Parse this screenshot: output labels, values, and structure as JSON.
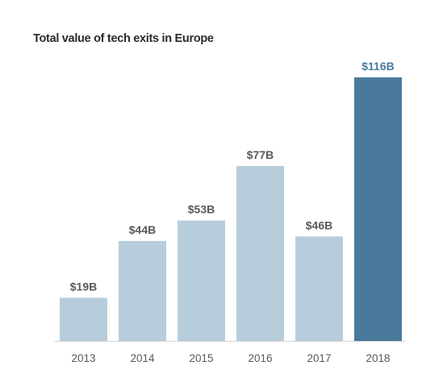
{
  "chart_data": {
    "type": "bar",
    "title": "Total value of tech exits in Europe",
    "xlabel": "",
    "ylabel": "",
    "categories": [
      "2013",
      "2014",
      "2015",
      "2016",
      "2017",
      "2018"
    ],
    "values": [
      19,
      44,
      53,
      77,
      46,
      116
    ],
    "data_labels": [
      "$19B",
      "$44B",
      "$53B",
      "$77B",
      "$46B",
      "$116B"
    ],
    "ylim": [
      0,
      116
    ],
    "grid": false,
    "legend": "none",
    "highlight_category": "2018",
    "colors": {
      "bar": "#b8cddb",
      "highlight_bar": "#4a7a9b",
      "data_label": "#595959",
      "highlight_data_label": "#4a7a9b",
      "tick_label": "#595959",
      "axis": "#d6d6d6",
      "title": "#2b2b2b"
    }
  }
}
